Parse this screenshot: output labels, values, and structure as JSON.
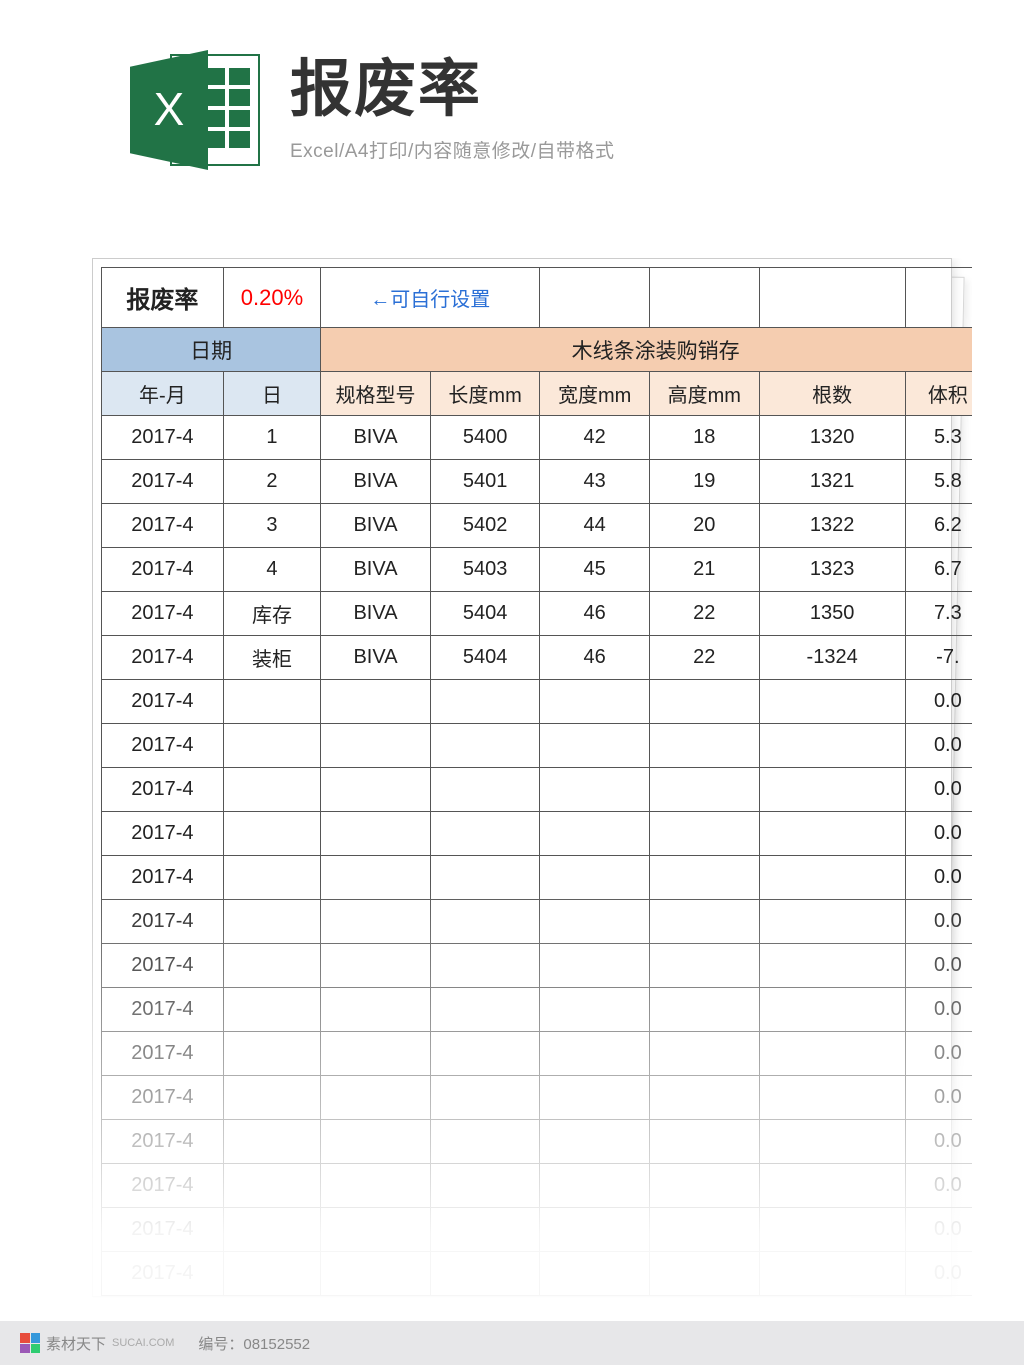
{
  "header": {
    "title": "报废率",
    "subtitle": "Excel/A4打印/内容随意修改/自带格式"
  },
  "sheet": {
    "scrap_label": "报废率",
    "scrap_value": "0.20%",
    "note": "←可自行设置",
    "group_headers": {
      "date": "日期",
      "main": "木线条涂装购销存"
    },
    "columns": {
      "ym": "年-月",
      "d": "日",
      "spec": "规格型号",
      "len": "长度mm",
      "wid": "宽度mm",
      "hei": "高度mm",
      "qty": "根数",
      "vol": "体积"
    },
    "col_widths": {
      "ym": 100,
      "d": 80,
      "spec": 90,
      "len": 90,
      "wid": 90,
      "hei": 90,
      "qty": 120,
      "vol": 70
    },
    "colors": {
      "hdr_blue": "#a9c4e0",
      "hdr_orange": "#f5cdb0",
      "sub_blue": "#dce7f2",
      "sub_orange": "#fbe8d9",
      "border": "#555555",
      "scrap_value": "#ff0000",
      "note": "#2a6fd6"
    },
    "rows": [
      {
        "ym": "2017-4",
        "d": "1",
        "spec": "BIVA",
        "len": "5400",
        "wid": "42",
        "hei": "18",
        "qty": "1320",
        "vol": "5.3"
      },
      {
        "ym": "2017-4",
        "d": "2",
        "spec": "BIVA",
        "len": "5401",
        "wid": "43",
        "hei": "19",
        "qty": "1321",
        "vol": "5.8"
      },
      {
        "ym": "2017-4",
        "d": "3",
        "spec": "BIVA",
        "len": "5402",
        "wid": "44",
        "hei": "20",
        "qty": "1322",
        "vol": "6.2"
      },
      {
        "ym": "2017-4",
        "d": "4",
        "spec": "BIVA",
        "len": "5403",
        "wid": "45",
        "hei": "21",
        "qty": "1323",
        "vol": "6.7"
      },
      {
        "ym": "2017-4",
        "d": "库存",
        "spec": "BIVA",
        "len": "5404",
        "wid": "46",
        "hei": "22",
        "qty": "1350",
        "vol": "7.3"
      },
      {
        "ym": "2017-4",
        "d": "装柜",
        "spec": "BIVA",
        "len": "5404",
        "wid": "46",
        "hei": "22",
        "qty": "-1324",
        "vol": "-7."
      },
      {
        "ym": "2017-4",
        "d": "",
        "spec": "",
        "len": "",
        "wid": "",
        "hei": "",
        "qty": "",
        "vol": "0.0"
      },
      {
        "ym": "2017-4",
        "d": "",
        "spec": "",
        "len": "",
        "wid": "",
        "hei": "",
        "qty": "",
        "vol": "0.0"
      },
      {
        "ym": "2017-4",
        "d": "",
        "spec": "",
        "len": "",
        "wid": "",
        "hei": "",
        "qty": "",
        "vol": "0.0"
      },
      {
        "ym": "2017-4",
        "d": "",
        "spec": "",
        "len": "",
        "wid": "",
        "hei": "",
        "qty": "",
        "vol": "0.0"
      },
      {
        "ym": "2017-4",
        "d": "",
        "spec": "",
        "len": "",
        "wid": "",
        "hei": "",
        "qty": "",
        "vol": "0.0"
      },
      {
        "ym": "2017-4",
        "d": "",
        "spec": "",
        "len": "",
        "wid": "",
        "hei": "",
        "qty": "",
        "vol": "0.0"
      },
      {
        "ym": "2017-4",
        "d": "",
        "spec": "",
        "len": "",
        "wid": "",
        "hei": "",
        "qty": "",
        "vol": "0.0"
      },
      {
        "ym": "2017-4",
        "d": "",
        "spec": "",
        "len": "",
        "wid": "",
        "hei": "",
        "qty": "",
        "vol": "0.0"
      },
      {
        "ym": "2017-4",
        "d": "",
        "spec": "",
        "len": "",
        "wid": "",
        "hei": "",
        "qty": "",
        "vol": "0.0"
      },
      {
        "ym": "2017-4",
        "d": "",
        "spec": "",
        "len": "",
        "wid": "",
        "hei": "",
        "qty": "",
        "vol": "0.0"
      },
      {
        "ym": "2017-4",
        "d": "",
        "spec": "",
        "len": "",
        "wid": "",
        "hei": "",
        "qty": "",
        "vol": "0.0"
      },
      {
        "ym": "2017-4",
        "d": "",
        "spec": "",
        "len": "",
        "wid": "",
        "hei": "",
        "qty": "",
        "vol": "0.0"
      },
      {
        "ym": "2017-4",
        "d": "",
        "spec": "",
        "len": "",
        "wid": "",
        "hei": "",
        "qty": "",
        "vol": "0.0"
      },
      {
        "ym": "2017-4",
        "d": "",
        "spec": "",
        "len": "",
        "wid": "",
        "hei": "",
        "qty": "",
        "vol": "0.0"
      }
    ]
  },
  "footer": {
    "brand": "素材天下",
    "site": "SUCAI.COM",
    "id_label": "编号：",
    "id_value": "08152552"
  }
}
